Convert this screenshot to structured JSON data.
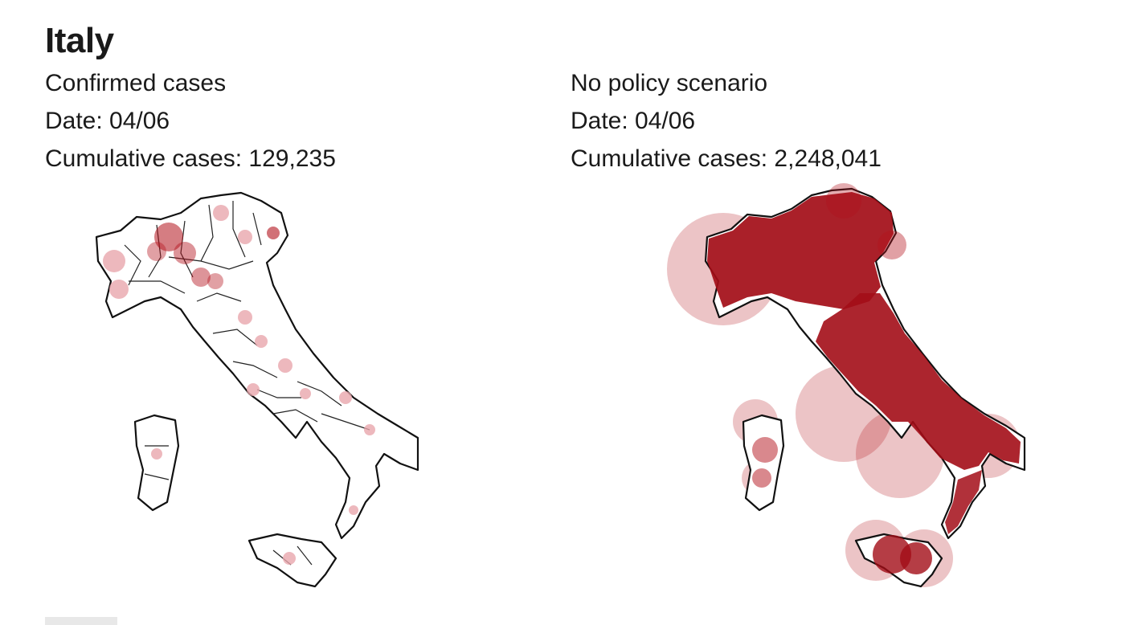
{
  "title": "Italy",
  "left_panel": {
    "subtitle": "Confirmed cases",
    "date": "Date: 04/06",
    "cumulative": "Cumulative cases: 129,235",
    "bubble_color": "#e8a6ad"
  },
  "right_panel": {
    "subtitle": "No policy scenario",
    "date": "Date: 04/06",
    "cumulative": "Cumulative cases: 2,248,041",
    "bubble_color": "#b3121c"
  }
}
